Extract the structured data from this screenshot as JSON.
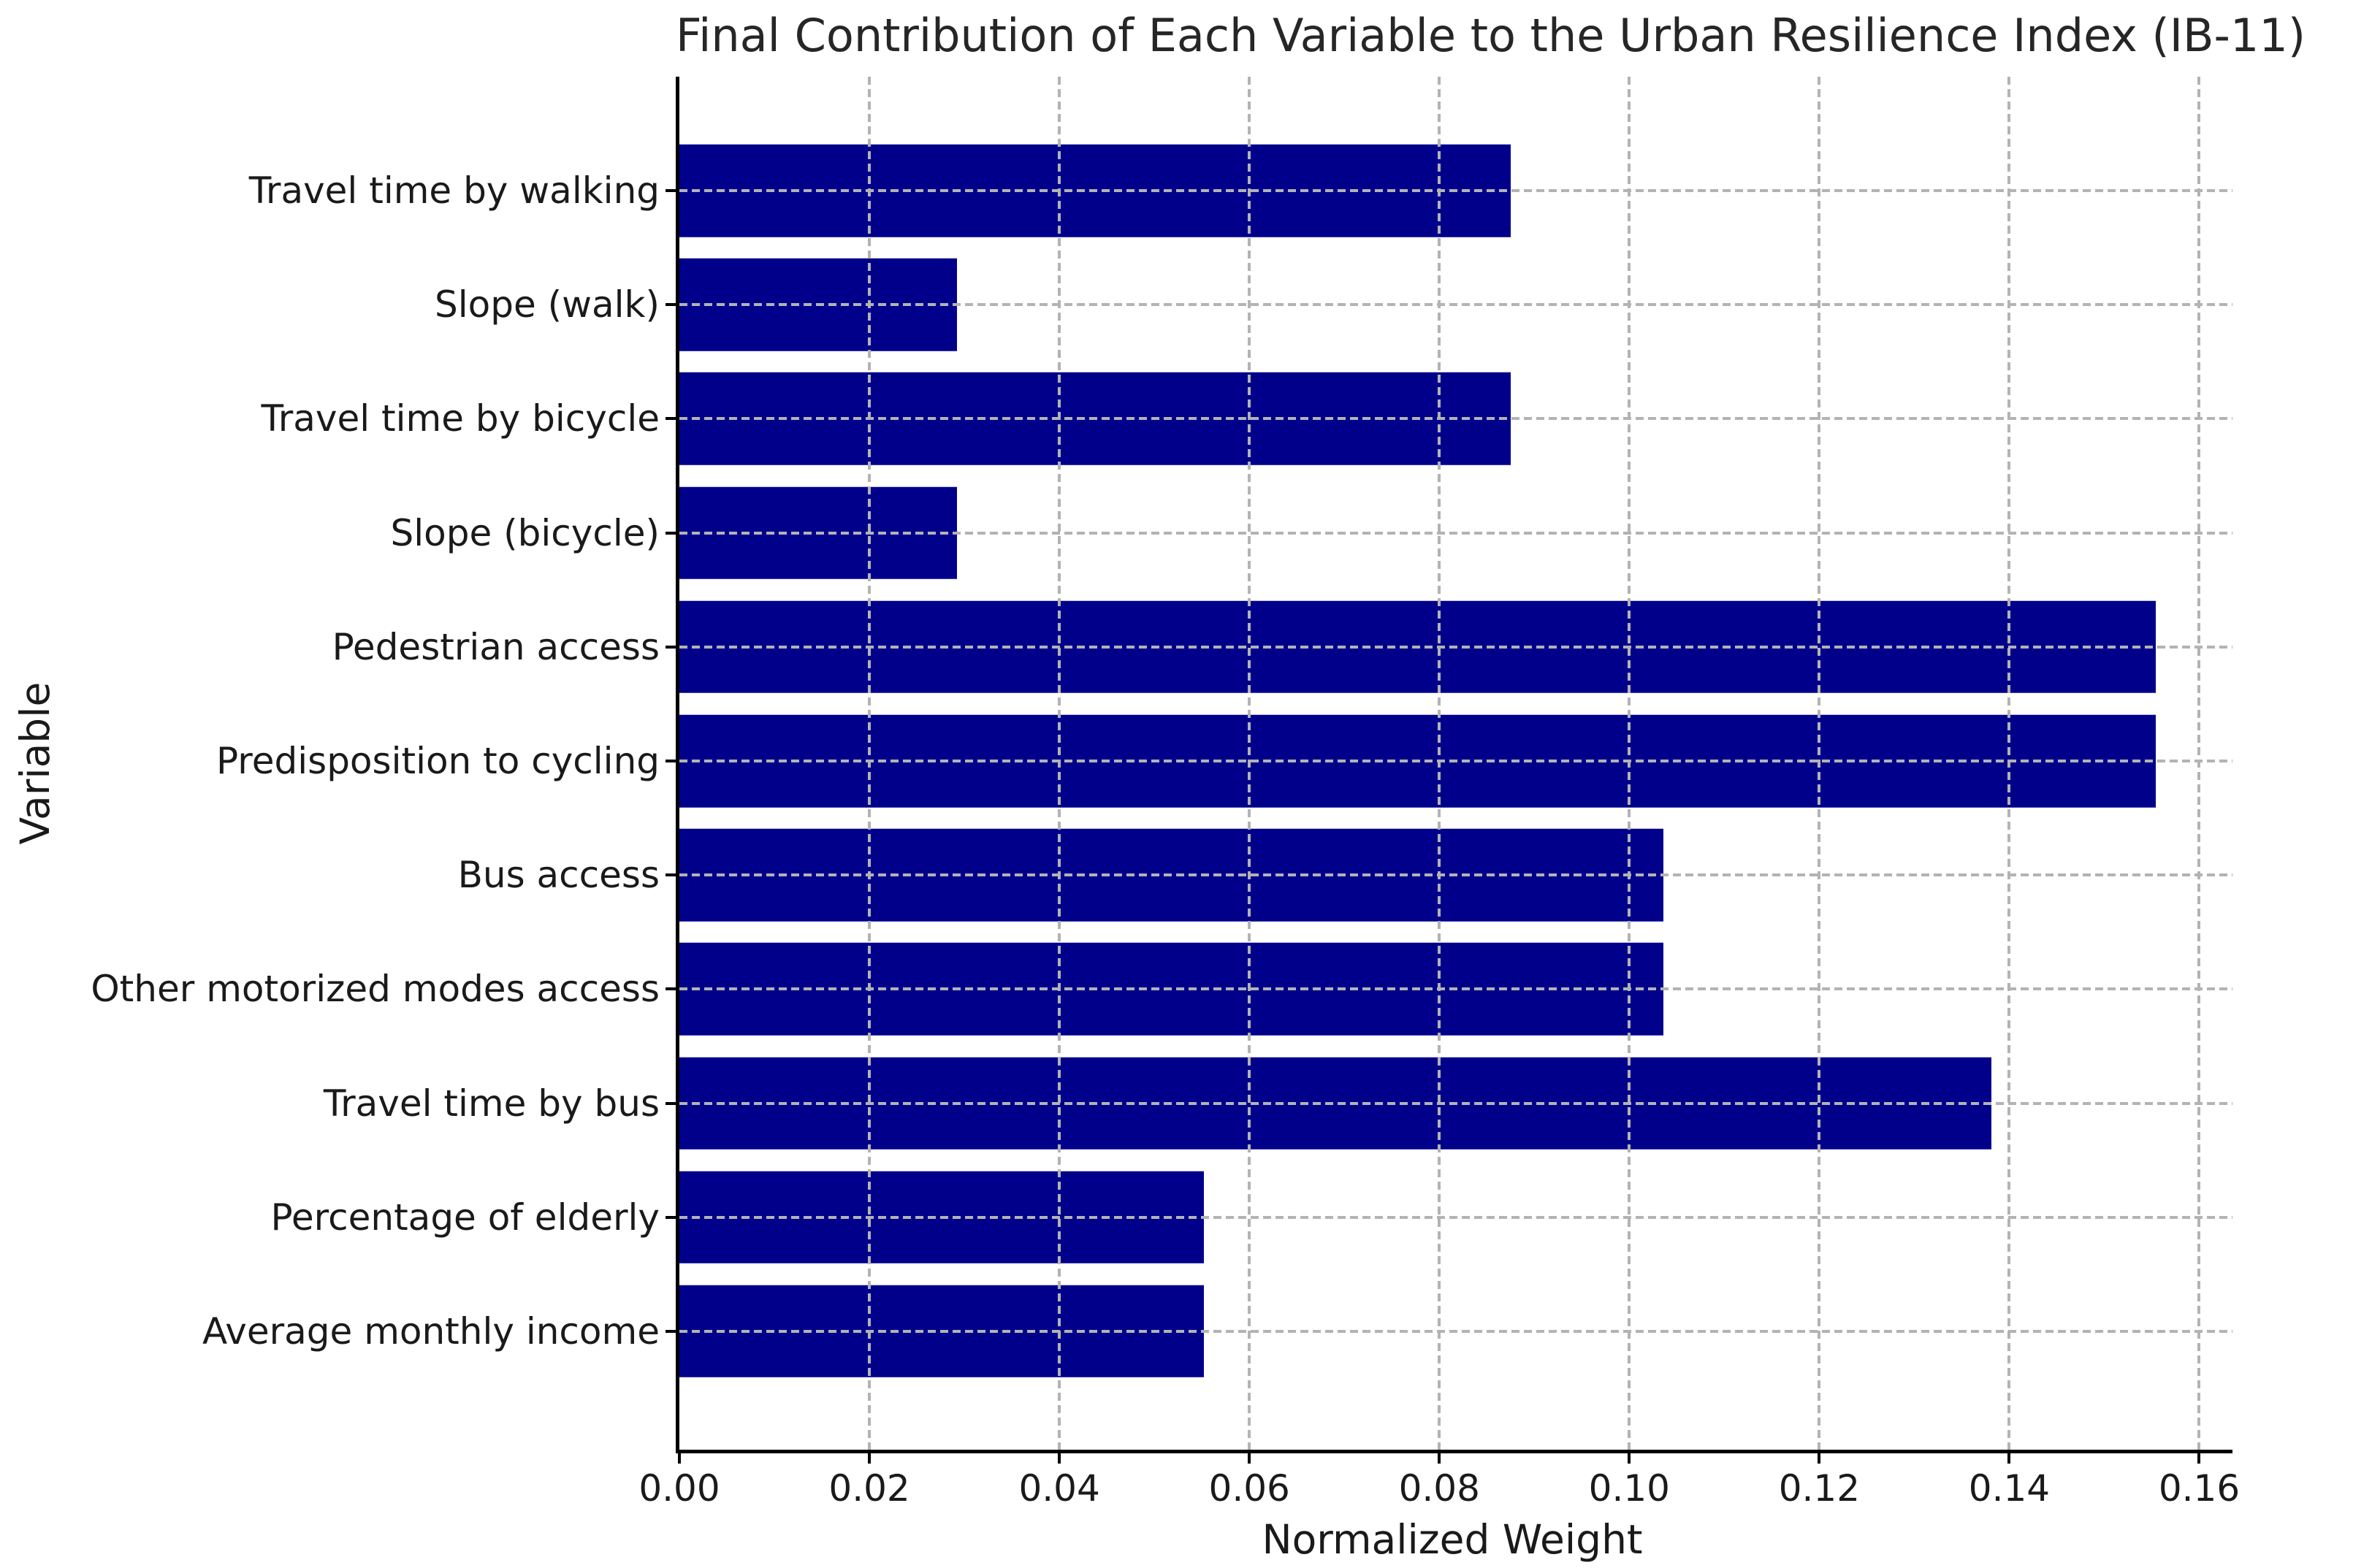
{
  "chart_data": {
    "type": "bar",
    "orientation": "horizontal",
    "title": "Final Contribution of Each Variable to the Urban Resilience Index (IB-11)",
    "xlabel": "Normalized Weight",
    "ylabel": "Variable",
    "categories": [
      "Travel time by walking",
      "Slope (walk)",
      "Travel time by bicycle",
      "Slope (bicycle)",
      "Pedestrian access",
      "Predisposition to cycling",
      "Bus access",
      "Other motorized modes access",
      "Travel time by bus",
      "Percentage of elderly",
      "Average monthly income"
    ],
    "values": [
      0.0875,
      0.0292,
      0.0875,
      0.0292,
      0.1554,
      0.1554,
      0.1036,
      0.1036,
      0.1381,
      0.0552,
      0.0552
    ],
    "xlim": [
      0,
      0.1635
    ],
    "xticks": [
      0.0,
      0.02,
      0.04,
      0.06,
      0.08,
      0.1,
      0.12,
      0.14,
      0.16
    ],
    "xtick_labels": [
      "0.00",
      "0.02",
      "0.04",
      "0.06",
      "0.08",
      "0.10",
      "0.12",
      "0.14",
      "0.16"
    ],
    "bar_color": "#00008B",
    "grid_color": "#b3b3b3",
    "grid_style": "dashed, horizontal and vertical, drawn above bars",
    "legend": "none"
  }
}
